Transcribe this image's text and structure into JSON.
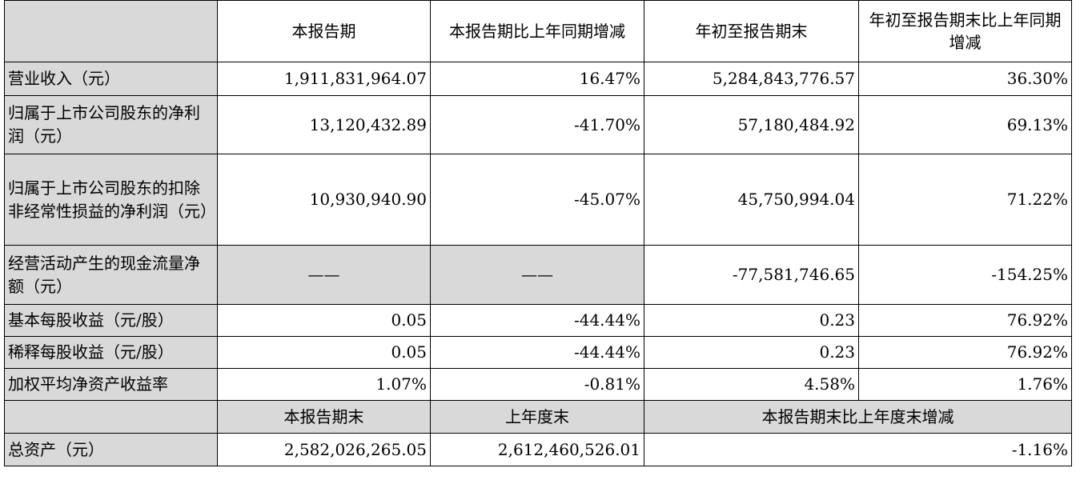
{
  "header": {
    "col1": "本报告期",
    "col2": "本报告期比上年同期增减",
    "col3": "年初至报告期末",
    "col4": "年初至报告期末比上年同期增减"
  },
  "rows": [
    {
      "label": "营业收入（元）",
      "v1": "1,911,831,964.07",
      "v2": "16.47%",
      "v3": "5,284,843,776.57",
      "v4": "36.30%"
    },
    {
      "label": "归属于上市公司股东的净利润（元）",
      "v1": "13,120,432.89",
      "v2": "-41.70%",
      "v3": "57,180,484.92",
      "v4": "69.13%"
    },
    {
      "label": "归属于上市公司股东的扣除非经常性损益的净利润（元）",
      "v1": "10,930,940.90",
      "v2": "-45.07%",
      "v3": "45,750,994.04",
      "v4": "71.22%"
    },
    {
      "label": "经营活动产生的现金流量净额（元）",
      "v1": "——",
      "v2": "——",
      "v3": "-77,581,746.65",
      "v4": "-154.25%"
    },
    {
      "label": "基本每股收益（元/股）",
      "v1": "0.05",
      "v2": "-44.44%",
      "v3": "0.23",
      "v4": "76.92%"
    },
    {
      "label": "稀释每股收益（元/股）",
      "v1": "0.05",
      "v2": "-44.44%",
      "v3": "0.23",
      "v4": "76.92%"
    },
    {
      "label": "加权平均净资产收益率",
      "v1": "1.07%",
      "v2": "-0.81%",
      "v3": "4.58%",
      "v4": "1.76%"
    }
  ],
  "header2": {
    "col1": "本报告期末",
    "col2": "上年度末",
    "col3": "本报告期末比上年度末增减"
  },
  "total_assets": {
    "label": "总资产（元）",
    "v1": "2,582,026,265.05",
    "v2": "2,612,460,526.01",
    "v3": "-1.16%"
  }
}
